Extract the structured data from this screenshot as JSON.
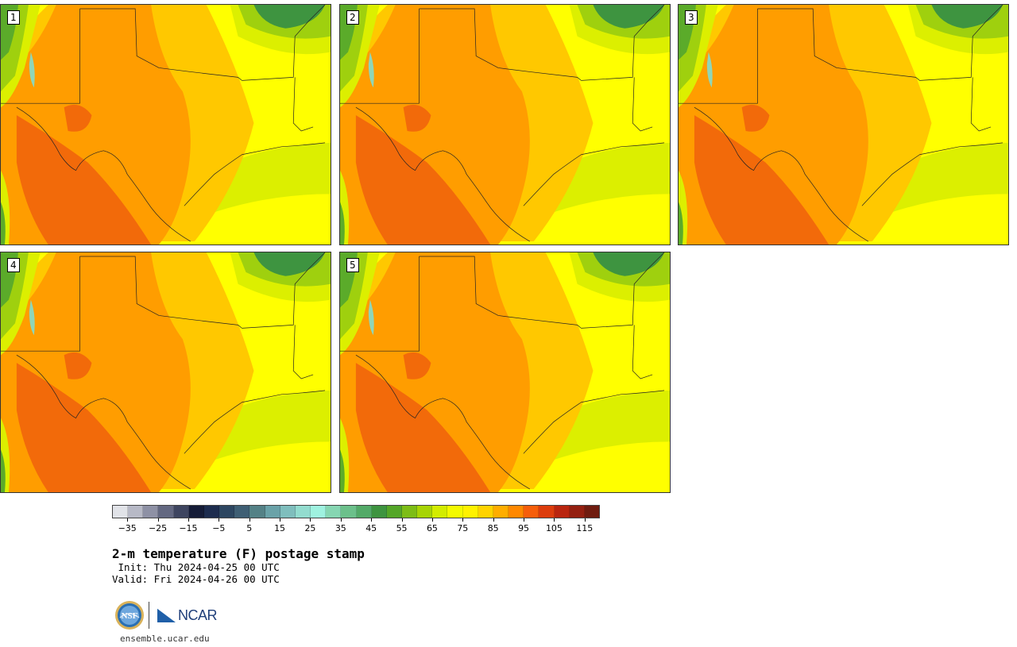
{
  "panels": [
    {
      "label": "1"
    },
    {
      "label": "2"
    },
    {
      "label": "3"
    },
    {
      "label": "4"
    },
    {
      "label": "5"
    }
  ],
  "colorbar": {
    "colors": [
      "#e1e3e8",
      "#b7b9c6",
      "#8e91a5",
      "#636881",
      "#3e4560",
      "#151c37",
      "#1d2c4e",
      "#2d4661",
      "#3f5f74",
      "#548186",
      "#6aa2a8",
      "#7fbebd",
      "#93dccf",
      "#9ff2e0",
      "#86d6b2",
      "#6cc08b",
      "#53aa68",
      "#3e9440",
      "#54a628",
      "#7dbd16",
      "#a7d406",
      "#d3ec00",
      "#f3fa00",
      "#fff200",
      "#ffd300",
      "#ffad00",
      "#ff8800",
      "#f65e0b",
      "#dc3d0d",
      "#b9250f",
      "#942011",
      "#6f1c10"
    ],
    "ticks": [
      -35,
      -25,
      -15,
      -5,
      5,
      15,
      25,
      35,
      45,
      55,
      65,
      75,
      85,
      95,
      105,
      115
    ],
    "tick_labels": [
      "−35",
      "−25",
      "−15",
      "−5",
      "5",
      "15",
      "25",
      "35",
      "45",
      "55",
      "65",
      "75",
      "85",
      "95",
      "105",
      "115"
    ],
    "min": -40,
    "max": 120
  },
  "map_colors": {
    "hot": "#f26a0a",
    "warm": "#ff9d00",
    "mild": "#ffc800",
    "yellow": "#ffff00",
    "lime": "#dcef00",
    "green1": "#9fd00e",
    "green2": "#5bab2a",
    "green3": "#3e9440",
    "teal": "#8fd6b8"
  },
  "title": "2-m temperature (F) postage stamp",
  "init": " Init: Thu 2024-04-25 00 UTC",
  "valid": "Valid: Fri 2024-04-26 00 UTC",
  "logos": {
    "nsf_text": "NSF",
    "ncar_text": "NCAR"
  },
  "site_url": "ensemble.ucar.edu"
}
